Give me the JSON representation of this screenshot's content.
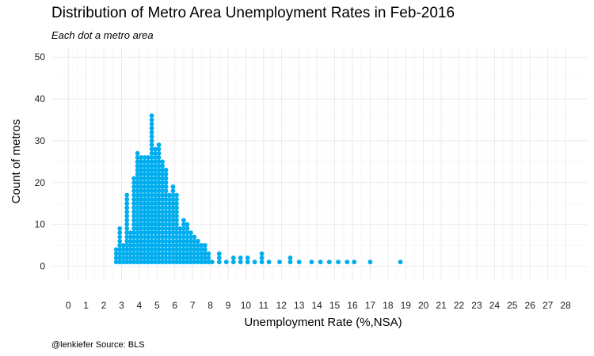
{
  "chart_data": {
    "type": "scatter",
    "style": "dot-stack",
    "title": "Distribution of Metro Area Unemployment Rates in Feb-2016",
    "subtitle": "Each dot a metro area",
    "caption": "@lenkiefer Source: BLS",
    "xlabel": "Unemployment Rate (%,NSA)",
    "ylabel": "Count of metros",
    "xlim": [
      -0.9,
      29.2
    ],
    "ylim": [
      -3.5,
      52.5
    ],
    "x_ticks": [
      0,
      1,
      2,
      3,
      4,
      5,
      6,
      7,
      8,
      9,
      10,
      11,
      12,
      13,
      14,
      15,
      16,
      17,
      18,
      19,
      20,
      21,
      22,
      23,
      24,
      25,
      26,
      27,
      28
    ],
    "y_ticks": [
      0,
      10,
      20,
      30,
      40,
      50
    ],
    "grid": true,
    "legend": "none",
    "dot_color": "#00AEEF",
    "x": [
      2.7,
      2.9,
      3.1,
      3.3,
      3.5,
      3.7,
      3.9,
      4.1,
      4.3,
      4.5,
      4.7,
      4.9,
      5.1,
      5.3,
      5.5,
      5.7,
      5.9,
      6.1,
      6.3,
      6.5,
      6.7,
      6.9,
      7.1,
      7.3,
      7.5,
      7.7,
      7.9,
      8.1,
      8.5,
      8.9,
      9.3,
      9.7,
      10.1,
      10.5,
      10.9,
      11.3,
      11.9,
      12.5,
      13.0,
      13.7,
      14.2,
      14.7,
      15.2,
      15.7,
      16.1,
      17.0,
      18.7
    ],
    "y": [
      4,
      9,
      5,
      17,
      8,
      21,
      27,
      26,
      26,
      26,
      36,
      28,
      29,
      25,
      23,
      17,
      19,
      17,
      9,
      11,
      10,
      8,
      7,
      6,
      5,
      5,
      3,
      1,
      3,
      1,
      2,
      2,
      2,
      1,
      3,
      1,
      1,
      2,
      1,
      1,
      1,
      1,
      1,
      1,
      1,
      1,
      1
    ]
  }
}
